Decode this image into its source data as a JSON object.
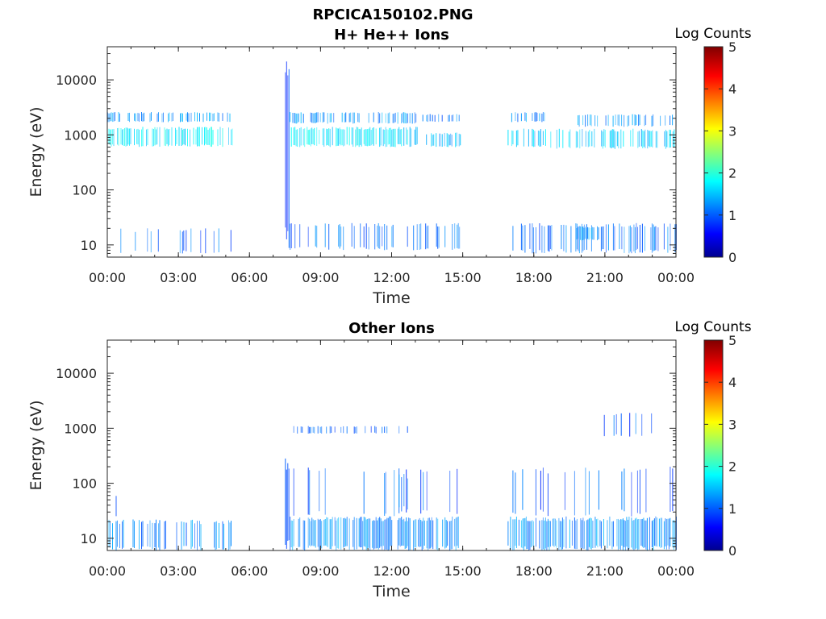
{
  "figure_title": "RPCICA150102.PNG",
  "chart_data": [
    {
      "type": "heatmap",
      "title": "H+ He++ Ions",
      "xlabel": "Time",
      "ylabel": "Energy (eV)",
      "yscale": "log",
      "ylim": [
        6,
        40000
      ],
      "x_ticks": [
        "00:00",
        "03:00",
        "06:00",
        "09:00",
        "12:00",
        "15:00",
        "18:00",
        "21:00",
        "00:00"
      ],
      "y_ticks": [
        "10",
        "100",
        "1000",
        "10000"
      ],
      "y_tick_values": [
        10,
        100,
        1000,
        10000
      ],
      "colorbar": {
        "label": "Log Counts",
        "ticks": [
          "0",
          "1",
          "2",
          "3",
          "4",
          "5"
        ],
        "range": [
          0,
          5
        ],
        "colormap": "jet"
      },
      "blocks": [
        {
          "t0": 0.0,
          "t1": 5.3,
          "e0": 600,
          "e1": 1400,
          "level": 1.3,
          "density": 0.6
        },
        {
          "t0": 0.0,
          "t1": 5.3,
          "e0": 1700,
          "e1": 2600,
          "level": 0.8,
          "density": 0.45
        },
        {
          "t0": 0.3,
          "t1": 5.3,
          "e0": 7,
          "e1": 20,
          "level": 0.6,
          "density": 0.15
        },
        {
          "t0": 7.5,
          "t1": 7.7,
          "e0": 6,
          "e1": 28000,
          "level": 0.3,
          "density": 1.0
        },
        {
          "t0": 7.7,
          "t1": 13.1,
          "e0": 600,
          "e1": 1400,
          "level": 1.3,
          "density": 0.7
        },
        {
          "t0": 7.7,
          "t1": 13.1,
          "e0": 1600,
          "e1": 2600,
          "level": 0.8,
          "density": 0.5
        },
        {
          "t0": 13.3,
          "t1": 14.9,
          "e0": 600,
          "e1": 1100,
          "level": 1.0,
          "density": 0.6
        },
        {
          "t0": 13.3,
          "t1": 14.9,
          "e0": 1700,
          "e1": 2400,
          "level": 0.7,
          "density": 0.3
        },
        {
          "t0": 7.7,
          "t1": 14.9,
          "e0": 8,
          "e1": 25,
          "level": 0.6,
          "density": 0.35
        },
        {
          "t0": 16.9,
          "t1": 18.5,
          "e0": 600,
          "e1": 1300,
          "level": 1.1,
          "density": 0.55
        },
        {
          "t0": 16.9,
          "t1": 18.5,
          "e0": 1700,
          "e1": 2600,
          "level": 0.8,
          "density": 0.4
        },
        {
          "t0": 18.7,
          "t1": 24.0,
          "e0": 550,
          "e1": 1300,
          "level": 1.1,
          "density": 0.5
        },
        {
          "t0": 19.8,
          "t1": 24.0,
          "e0": 1400,
          "e1": 2400,
          "level": 0.8,
          "density": 0.45
        },
        {
          "t0": 16.9,
          "t1": 24.0,
          "e0": 7,
          "e1": 25,
          "level": 0.6,
          "density": 0.4
        },
        {
          "t0": 19.8,
          "t1": 20.8,
          "e0": 12,
          "e1": 22,
          "level": 0.9,
          "density": 0.8
        }
      ]
    },
    {
      "type": "heatmap",
      "title": "Other Ions",
      "xlabel": "Time",
      "ylabel": "Energy (eV)",
      "yscale": "log",
      "ylim": [
        6,
        40000
      ],
      "x_ticks": [
        "00:00",
        "03:00",
        "06:00",
        "09:00",
        "12:00",
        "15:00",
        "18:00",
        "21:00",
        "00:00"
      ],
      "y_ticks": [
        "10",
        "100",
        "1000",
        "10000"
      ],
      "y_tick_values": [
        10,
        100,
        1000,
        10000
      ],
      "colorbar": {
        "label": "Log Counts",
        "ticks": [
          "0",
          "1",
          "2",
          "3",
          "4",
          "5"
        ],
        "range": [
          0,
          5
        ],
        "colormap": "jet"
      },
      "blocks": [
        {
          "t0": 0.0,
          "t1": 5.3,
          "e0": 6,
          "e1": 22,
          "level": 0.7,
          "density": 0.45
        },
        {
          "t0": 0.0,
          "t1": 0.4,
          "e0": 22,
          "e1": 60,
          "level": 0.5,
          "density": 0.3
        },
        {
          "t0": 7.5,
          "t1": 7.7,
          "e0": 6,
          "e1": 300,
          "level": 0.5,
          "density": 1.0
        },
        {
          "t0": 7.7,
          "t1": 14.9,
          "e0": 6,
          "e1": 25,
          "level": 0.8,
          "density": 0.8
        },
        {
          "t0": 7.7,
          "t1": 14.9,
          "e0": 25,
          "e1": 200,
          "level": 0.5,
          "density": 0.12
        },
        {
          "t0": 7.7,
          "t1": 12.8,
          "e0": 800,
          "e1": 1100,
          "level": 0.5,
          "density": 0.3
        },
        {
          "t0": 12.3,
          "t1": 12.9,
          "e0": 30,
          "e1": 150,
          "level": 0.7,
          "density": 0.5
        },
        {
          "t0": 16.9,
          "t1": 24.0,
          "e0": 6,
          "e1": 25,
          "level": 0.8,
          "density": 0.75
        },
        {
          "t0": 16.9,
          "t1": 24.0,
          "e0": 25,
          "e1": 200,
          "level": 0.5,
          "density": 0.1
        },
        {
          "t0": 20.5,
          "t1": 23.0,
          "e0": 700,
          "e1": 2000,
          "level": 0.5,
          "density": 0.2
        }
      ]
    }
  ]
}
